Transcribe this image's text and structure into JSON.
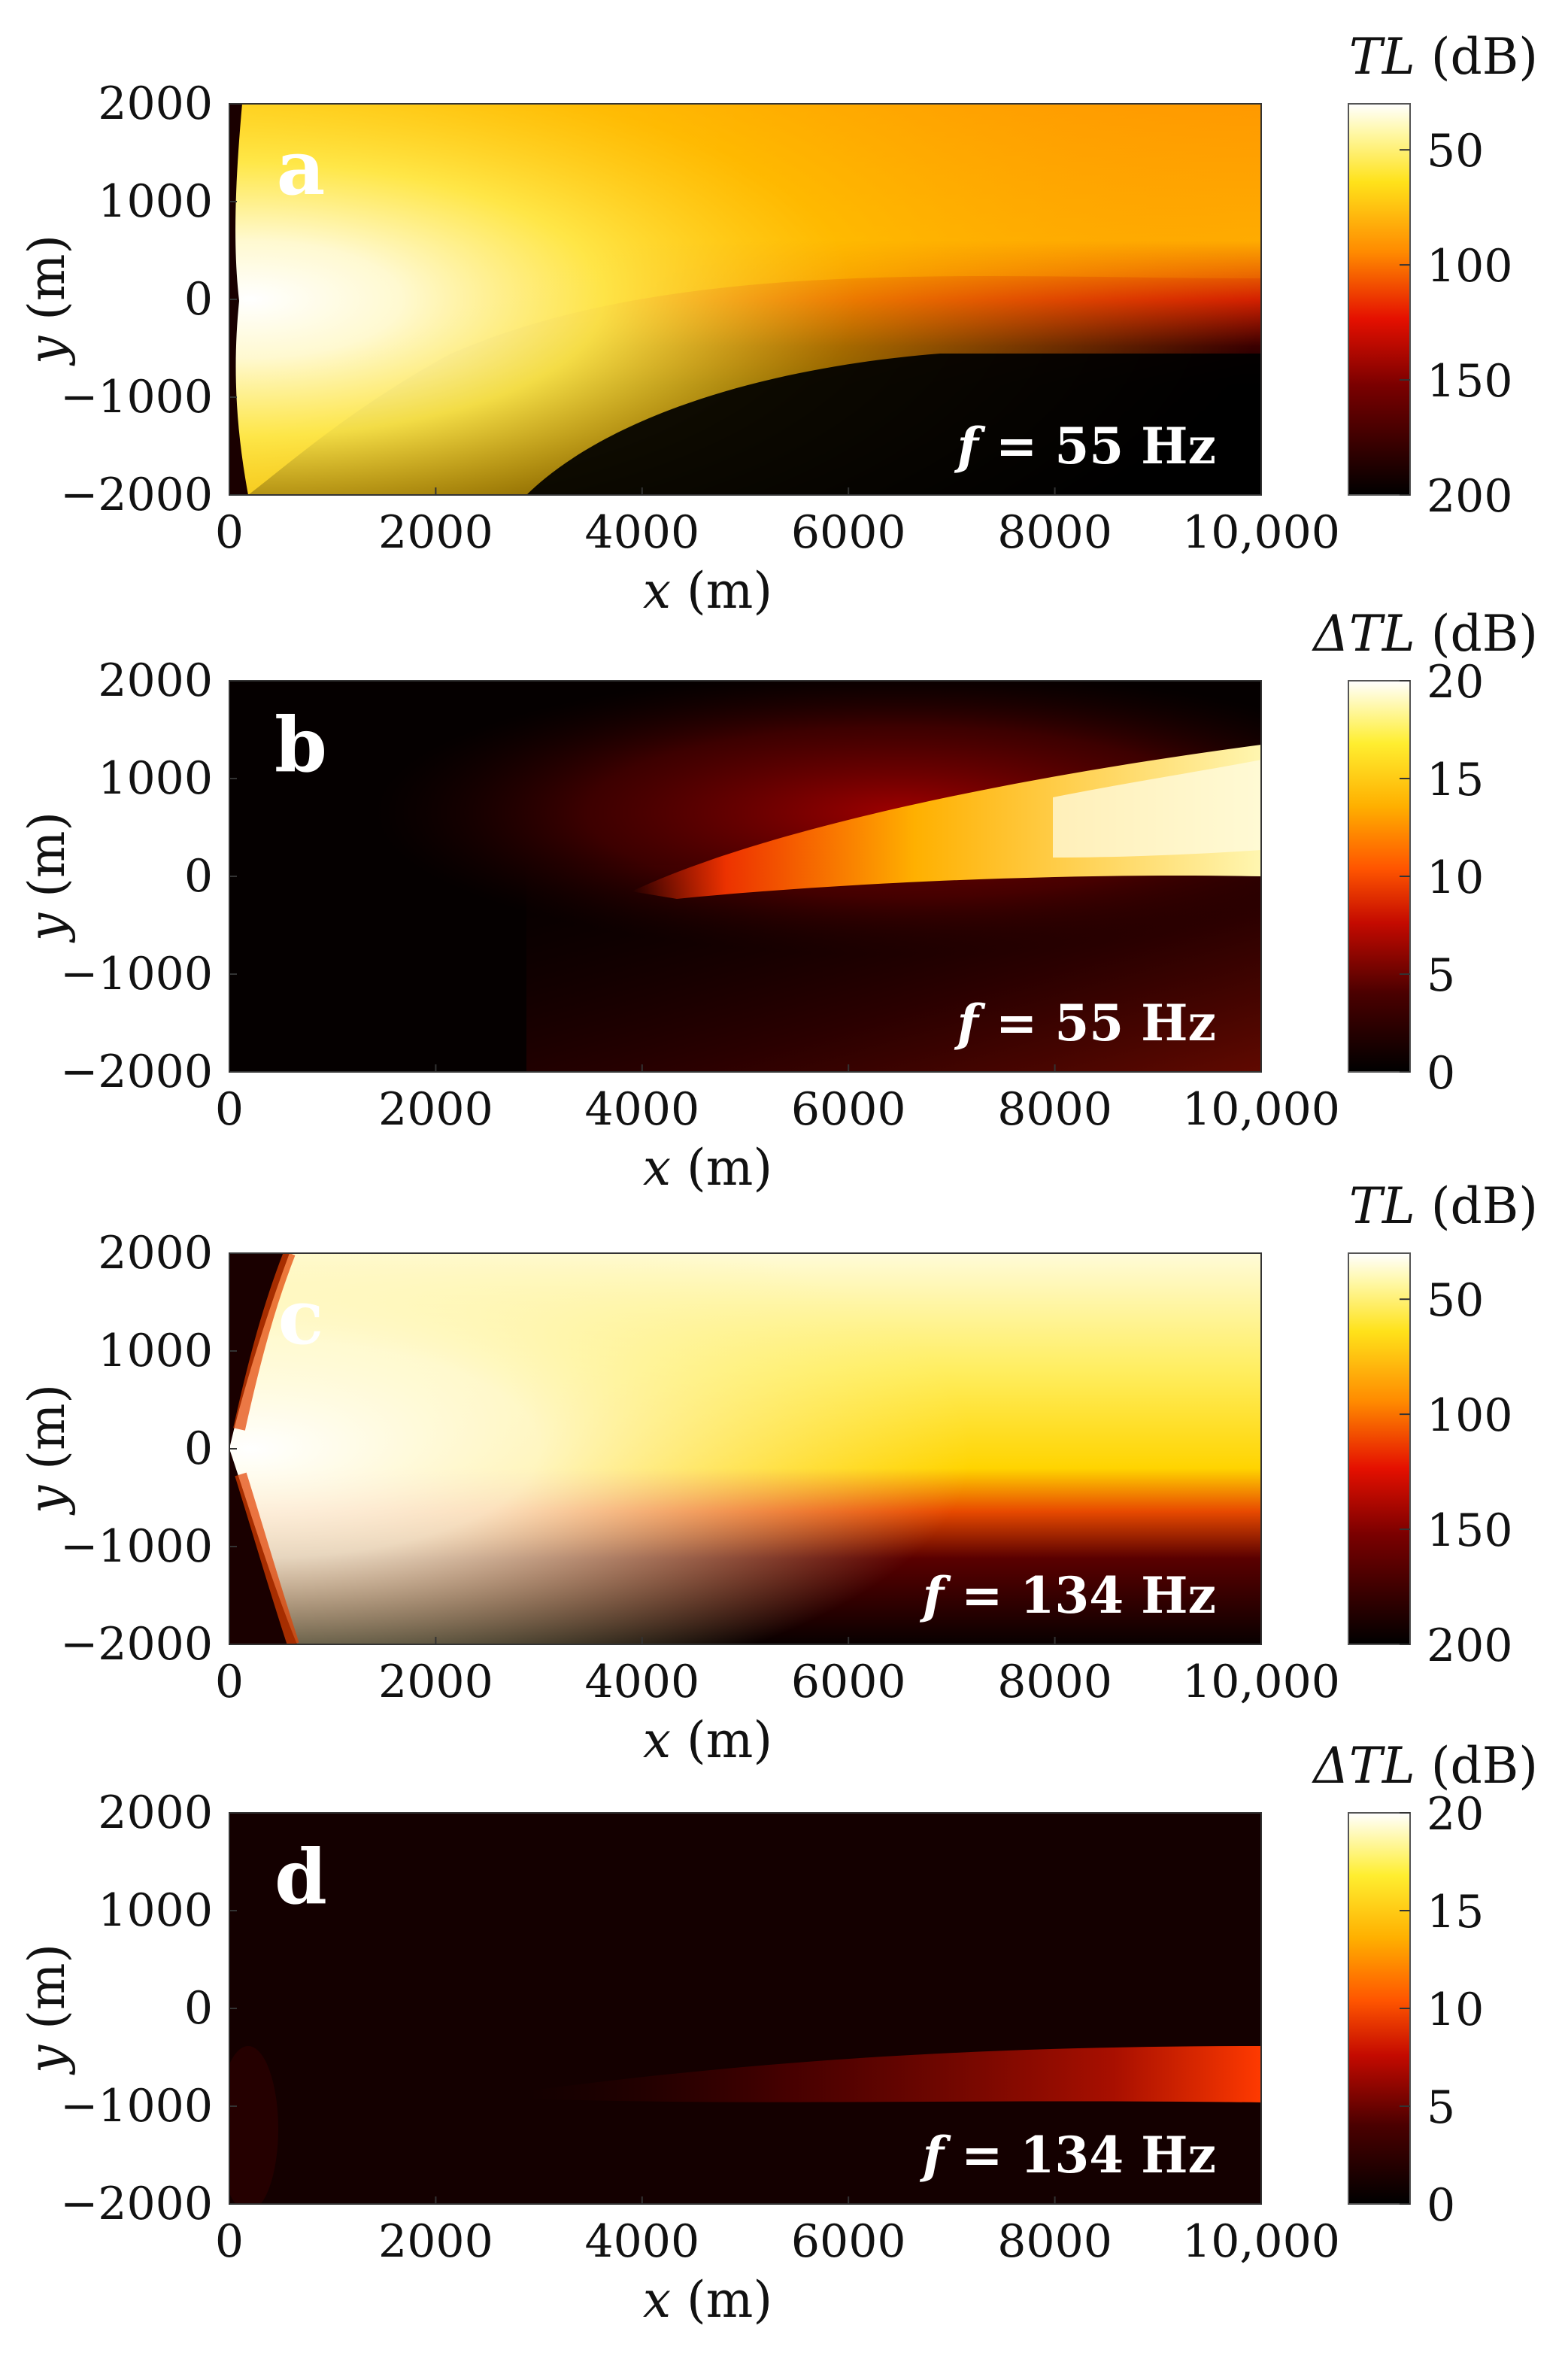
{
  "chart_data": [
    {
      "type": "heatmap",
      "panel_label": "a",
      "annotation": {
        "prefix": "f",
        "text": " = 55 Hz"
      },
      "xlabel": {
        "symbol": "x",
        "unit": " (m)"
      },
      "ylabel": {
        "symbol": "y",
        "unit": " (m)"
      },
      "xlim": [
        0,
        10000
      ],
      "ylim": [
        -2000,
        2000
      ],
      "xticks": [
        0,
        2000,
        4000,
        6000,
        8000,
        10000
      ],
      "xtick_labels": [
        "0",
        "2000",
        "4000",
        "6000",
        "8000",
        "10,000"
      ],
      "yticks": [
        2000,
        1000,
        0,
        -1000,
        -2000
      ],
      "ytick_labels": [
        "2000",
        "1000",
        "0",
        "−1000",
        "−2000"
      ],
      "colorbar": {
        "title_symbol": "TL",
        "title_unit": " (dB)",
        "range": [
          30,
          200
        ],
        "reversed": true,
        "ticks": [
          50,
          100,
          150,
          200
        ],
        "tick_labels": [
          "50",
          "100",
          "150",
          "200"
        ]
      },
      "colormap": "hot",
      "field_description_values": {
        "beam_angle_deg": 0,
        "beam_center_y": 700,
        "beam_half_width_y": 1300,
        "dark_lower_region_y": -700
      }
    },
    {
      "type": "heatmap",
      "panel_label": "b",
      "annotation": {
        "prefix": "f",
        "text": " = 55 Hz"
      },
      "xlabel": {
        "symbol": "x",
        "unit": " (m)"
      },
      "ylabel": {
        "symbol": "y",
        "unit": " (m)"
      },
      "xlim": [
        0,
        10000
      ],
      "ylim": [
        -2000,
        2000
      ],
      "xticks": [
        0,
        2000,
        4000,
        6000,
        8000,
        10000
      ],
      "xtick_labels": [
        "0",
        "2000",
        "4000",
        "6000",
        "8000",
        "10,000"
      ],
      "yticks": [
        2000,
        1000,
        0,
        -1000,
        -2000
      ],
      "ytick_labels": [
        "2000",
        "1000",
        "0",
        "−1000",
        "−2000"
      ],
      "colorbar": {
        "title_symbol": "ΔTL",
        "title_unit": " (dB)",
        "range": [
          0,
          20
        ],
        "reversed": false,
        "ticks": [
          0,
          5,
          10,
          15,
          20
        ],
        "tick_labels": [
          "0",
          "5",
          "10",
          "15",
          "20"
        ]
      },
      "colormap": "hot"
    },
    {
      "type": "heatmap",
      "panel_label": "c",
      "annotation": {
        "prefix": "f",
        "text": " = 134 Hz"
      },
      "xlabel": {
        "symbol": "x",
        "unit": " (m)"
      },
      "ylabel": {
        "symbol": "y",
        "unit": " (m)"
      },
      "xlim": [
        0,
        10000
      ],
      "ylim": [
        -2000,
        2000
      ],
      "xticks": [
        0,
        2000,
        4000,
        6000,
        8000,
        10000
      ],
      "xtick_labels": [
        "0",
        "2000",
        "4000",
        "6000",
        "8000",
        "10,000"
      ],
      "yticks": [
        2000,
        1000,
        0,
        -1000,
        -2000
      ],
      "ytick_labels": [
        "2000",
        "1000",
        "0",
        "−1000",
        "−2000"
      ],
      "colorbar": {
        "title_symbol": "TL",
        "title_unit": " (dB)",
        "range": [
          30,
          200
        ],
        "reversed": true,
        "ticks": [
          50,
          100,
          150,
          200
        ],
        "tick_labels": [
          "50",
          "100",
          "150",
          "200"
        ]
      },
      "colormap": "hot"
    },
    {
      "type": "heatmap",
      "panel_label": "d",
      "annotation": {
        "prefix": "f",
        "text": " = 134 Hz"
      },
      "xlabel": {
        "symbol": "x",
        "unit": " (m)"
      },
      "ylabel": {
        "symbol": "y",
        "unit": " (m)"
      },
      "xlim": [
        0,
        10000
      ],
      "ylim": [
        -2000,
        2000
      ],
      "xticks": [
        0,
        2000,
        4000,
        6000,
        8000,
        10000
      ],
      "xtick_labels": [
        "0",
        "2000",
        "4000",
        "6000",
        "8000",
        "10,000"
      ],
      "yticks": [
        2000,
        1000,
        0,
        -1000,
        -2000
      ],
      "ytick_labels": [
        "2000",
        "1000",
        "0",
        "−1000",
        "−2000"
      ],
      "colorbar": {
        "title_symbol": "ΔTL",
        "title_unit": " (dB)",
        "range": [
          0,
          20
        ],
        "reversed": false,
        "ticks": [
          0,
          5,
          10,
          15,
          20
        ],
        "tick_labels": [
          "0",
          "5",
          "10",
          "15",
          "20"
        ]
      },
      "colormap": "hot"
    }
  ]
}
